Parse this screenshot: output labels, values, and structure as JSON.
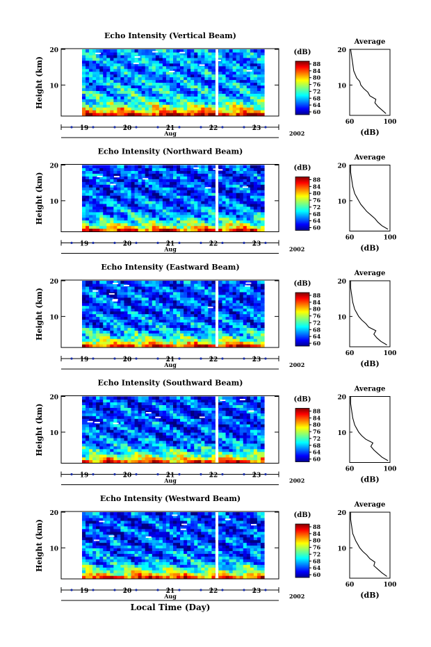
{
  "figure": {
    "xlabel": "Local Time (Day)",
    "month_label": "Aug",
    "year_label": "2002",
    "day_ticks": [
      "19",
      "20",
      "21",
      "22",
      "23"
    ],
    "colorbar_unit": "(dB)",
    "colorbar_ticks": [
      "88",
      "84",
      "80",
      "76",
      "72",
      "68",
      "64",
      "60"
    ],
    "profile_title": "Average",
    "profile_xlabel": "(dB)",
    "height_label": "Height (km)",
    "height_ticks": [
      "20",
      "10"
    ]
  },
  "chart_data": [
    {
      "type": "heatmap",
      "title": "Echo Intensity (Vertical Beam)",
      "xlabel": "Local Time (Day)",
      "ylabel": "Height (km)",
      "x_ticks": [
        "19",
        "20",
        "21",
        "22",
        "23"
      ],
      "ylim": [
        1.5,
        20
      ],
      "clim": [
        60,
        88
      ],
      "profile": {
        "title": "Average",
        "xlabel": "(dB)",
        "x_ticks": [
          "60",
          "100"
        ],
        "xlim": [
          60,
          100
        ],
        "heights": [
          2,
          3,
          4,
          5,
          6,
          7,
          8,
          9,
          10,
          11,
          12,
          14,
          16,
          18,
          20
        ],
        "values": [
          96,
          92,
          88,
          85,
          86,
          80,
          78,
          74,
          71,
          70,
          67,
          64,
          63,
          62,
          61
        ]
      }
    },
    {
      "type": "heatmap",
      "title": "Echo Intensity (Northward Beam)",
      "xlabel": "Local Time (Day)",
      "ylabel": "Height (km)",
      "x_ticks": [
        "19",
        "20",
        "21",
        "22",
        "23"
      ],
      "ylim": [
        1.5,
        20
      ],
      "clim": [
        60,
        88
      ],
      "profile": {
        "title": "Average",
        "xlabel": "(dB)",
        "x_ticks": [
          "60",
          "100"
        ],
        "xlim": [
          60,
          100
        ],
        "heights": [
          2,
          3,
          4,
          5,
          6,
          7,
          8,
          9,
          10,
          11,
          12,
          14,
          16,
          18,
          20
        ],
        "values": [
          98,
          92,
          88,
          85,
          81,
          77,
          74,
          71,
          69,
          67,
          65,
          63,
          62,
          61,
          61
        ]
      }
    },
    {
      "type": "heatmap",
      "title": "Echo Intensity (Eastward Beam)",
      "xlabel": "Local Time (Day)",
      "ylabel": "Height (km)",
      "x_ticks": [
        "19",
        "20",
        "21",
        "22",
        "23"
      ],
      "ylim": [
        1.5,
        20
      ],
      "clim": [
        60,
        88
      ],
      "profile": {
        "title": "Average",
        "xlabel": "(dB)",
        "x_ticks": [
          "60",
          "100"
        ],
        "xlim": [
          60,
          100
        ],
        "heights": [
          2,
          3,
          4,
          5,
          6,
          7,
          8,
          9,
          10,
          11,
          12,
          14,
          16,
          18,
          20
        ],
        "values": [
          97,
          91,
          87,
          84,
          86,
          79,
          76,
          72,
          69,
          67,
          65,
          63,
          62,
          61,
          61
        ]
      }
    },
    {
      "type": "heatmap",
      "title": "Echo Intensity (Southward Beam)",
      "xlabel": "Local Time (Day)",
      "ylabel": "Height (km)",
      "x_ticks": [
        "19",
        "20",
        "21",
        "22",
        "23"
      ],
      "ylim": [
        1.5,
        20
      ],
      "clim": [
        60,
        88
      ],
      "profile": {
        "title": "Average",
        "xlabel": "(dB)",
        "x_ticks": [
          "60",
          "100"
        ],
        "xlim": [
          60,
          100
        ],
        "heights": [
          2,
          3,
          4,
          5,
          6,
          7,
          8,
          9,
          10,
          11,
          12,
          14,
          16,
          18,
          20
        ],
        "values": [
          98,
          92,
          88,
          84,
          81,
          83,
          76,
          72,
          69,
          67,
          65,
          63,
          62,
          61,
          61
        ]
      }
    },
    {
      "type": "heatmap",
      "title": "Echo Intensity (Westward Beam)",
      "xlabel": "Local Time (Day)",
      "ylabel": "Height (km)",
      "x_ticks": [
        "19",
        "20",
        "21",
        "22",
        "23"
      ],
      "ylim": [
        1.5,
        20
      ],
      "clim": [
        60,
        88
      ],
      "profile": {
        "title": "Average",
        "xlabel": "(dB)",
        "x_ticks": [
          "60",
          "100"
        ],
        "xlim": [
          60,
          100
        ],
        "heights": [
          2,
          3,
          4,
          5,
          6,
          7,
          8,
          9,
          10,
          11,
          12,
          14,
          16,
          18,
          20
        ],
        "values": [
          97,
          92,
          88,
          84,
          85,
          80,
          77,
          73,
          70,
          68,
          66,
          63,
          62,
          61,
          61
        ]
      }
    }
  ]
}
